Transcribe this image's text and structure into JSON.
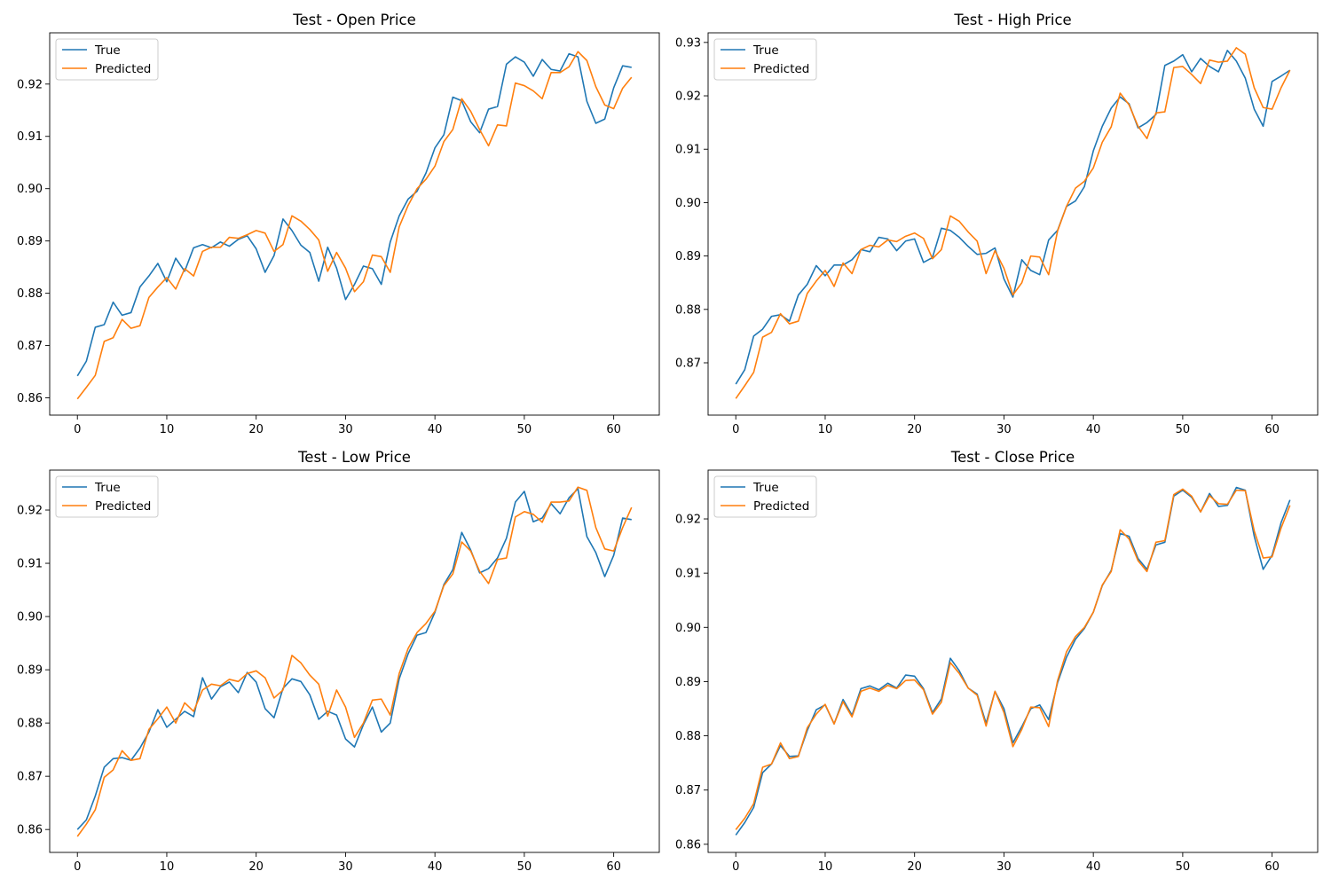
{
  "chart_data": [
    {
      "type": "line",
      "title": "Test - Open Price",
      "xlabel": "",
      "ylabel": "",
      "xlim": [
        -3.1,
        65.1
      ],
      "ylim": [
        0.8567,
        0.9298
      ],
      "xticks": [
        0,
        10,
        20,
        30,
        40,
        50,
        60
      ],
      "xtick_labels": [
        "0",
        "10",
        "20",
        "30",
        "40",
        "50",
        "60"
      ],
      "yticks": [
        0.86,
        0.87,
        0.88,
        0.89,
        0.9,
        0.91,
        0.92
      ],
      "ytick_labels": [
        "0.86",
        "0.87",
        "0.88",
        "0.89",
        "0.90",
        "0.91",
        "0.92"
      ],
      "grid": false,
      "legend": "upper-left",
      "series": [
        {
          "name": "True",
          "color": "#1f77b4",
          "values": [
            0.8642,
            0.867,
            0.8735,
            0.874,
            0.8783,
            0.8758,
            0.8763,
            0.8812,
            0.8833,
            0.8857,
            0.8822,
            0.8867,
            0.8842,
            0.8887,
            0.8893,
            0.8887,
            0.8898,
            0.889,
            0.8903,
            0.891,
            0.8885,
            0.884,
            0.8872,
            0.8942,
            0.892,
            0.8892,
            0.8878,
            0.8823,
            0.8888,
            0.8848,
            0.8788,
            0.8817,
            0.8852,
            0.8847,
            0.8817,
            0.8898,
            0.8948,
            0.898,
            0.8995,
            0.903,
            0.9078,
            0.9103,
            0.9175,
            0.9168,
            0.9128,
            0.9107,
            0.9152,
            0.9157,
            0.9238,
            0.9252,
            0.9242,
            0.9215,
            0.9247,
            0.9228,
            0.9225,
            0.9258,
            0.9252,
            0.9167,
            0.9125,
            0.9133,
            0.9193,
            0.9235,
            0.9232
          ]
        },
        {
          "name": "Predicted",
          "color": "#ff7f0e",
          "values": [
            0.8598,
            0.862,
            0.8643,
            0.8708,
            0.8715,
            0.875,
            0.8733,
            0.8738,
            0.8792,
            0.8812,
            0.883,
            0.8808,
            0.8847,
            0.8833,
            0.888,
            0.8888,
            0.8888,
            0.8907,
            0.8905,
            0.8912,
            0.892,
            0.8915,
            0.888,
            0.8893,
            0.8948,
            0.8938,
            0.8922,
            0.8902,
            0.8842,
            0.8878,
            0.8848,
            0.8803,
            0.8822,
            0.8873,
            0.887,
            0.884,
            0.8927,
            0.8968,
            0.9,
            0.9018,
            0.9043,
            0.909,
            0.9113,
            0.9172,
            0.9148,
            0.9113,
            0.9082,
            0.9122,
            0.912,
            0.9202,
            0.9197,
            0.9187,
            0.9172,
            0.9222,
            0.9222,
            0.9233,
            0.9262,
            0.9245,
            0.9195,
            0.916,
            0.9153,
            0.9192,
            0.9213
          ]
        }
      ]
    },
    {
      "type": "line",
      "title": "Test - High Price",
      "xlabel": "",
      "ylabel": "",
      "xlim": [
        -3.1,
        65.1
      ],
      "ylim": [
        0.8602,
        0.9318
      ],
      "xticks": [
        0,
        10,
        20,
        30,
        40,
        50,
        60
      ],
      "xtick_labels": [
        "0",
        "10",
        "20",
        "30",
        "40",
        "50",
        "60"
      ],
      "yticks": [
        0.87,
        0.88,
        0.89,
        0.9,
        0.91,
        0.92,
        0.93
      ],
      "ytick_labels": [
        "0.87",
        "0.88",
        "0.89",
        "0.90",
        "0.91",
        "0.92",
        "0.93"
      ],
      "grid": false,
      "legend": "upper-left",
      "series": [
        {
          "name": "True",
          "color": "#1f77b4",
          "values": [
            0.866,
            0.8687,
            0.875,
            0.8763,
            0.8787,
            0.879,
            0.8778,
            0.8827,
            0.8847,
            0.8882,
            0.8863,
            0.8883,
            0.8883,
            0.8893,
            0.8912,
            0.8908,
            0.8935,
            0.8932,
            0.891,
            0.8928,
            0.8932,
            0.8888,
            0.8897,
            0.8952,
            0.8948,
            0.8935,
            0.8918,
            0.8903,
            0.8905,
            0.8915,
            0.8857,
            0.8823,
            0.8893,
            0.8873,
            0.8865,
            0.893,
            0.8948,
            0.8993,
            0.9003,
            0.903,
            0.9097,
            0.9143,
            0.9177,
            0.9198,
            0.9185,
            0.914,
            0.915,
            0.9165,
            0.9257,
            0.9265,
            0.9277,
            0.9245,
            0.927,
            0.9255,
            0.9245,
            0.9285,
            0.9265,
            0.9233,
            0.9175,
            0.9143,
            0.9227,
            0.9237,
            0.9248
          ]
        },
        {
          "name": "Predicted",
          "color": "#ff7f0e",
          "values": [
            0.8633,
            0.8657,
            0.8682,
            0.8748,
            0.8757,
            0.8792,
            0.8773,
            0.8778,
            0.883,
            0.8853,
            0.8873,
            0.8843,
            0.8887,
            0.8867,
            0.8912,
            0.892,
            0.8917,
            0.893,
            0.8927,
            0.8937,
            0.8943,
            0.8933,
            0.8895,
            0.8912,
            0.8975,
            0.8965,
            0.8945,
            0.8928,
            0.8867,
            0.891,
            0.8877,
            0.8827,
            0.885,
            0.89,
            0.8898,
            0.8865,
            0.8947,
            0.8993,
            0.9027,
            0.904,
            0.9065,
            0.9113,
            0.9142,
            0.9205,
            0.9183,
            0.9143,
            0.912,
            0.9168,
            0.917,
            0.9253,
            0.9255,
            0.924,
            0.9223,
            0.9267,
            0.9263,
            0.9265,
            0.929,
            0.9278,
            0.9215,
            0.9178,
            0.9175,
            0.9215,
            0.9248
          ]
        }
      ]
    },
    {
      "type": "line",
      "title": "Test - Low Price",
      "xlabel": "",
      "ylabel": "",
      "xlim": [
        -3.1,
        65.1
      ],
      "ylim": [
        0.8557,
        0.9275
      ],
      "xticks": [
        0,
        10,
        20,
        30,
        40,
        50,
        60
      ],
      "xtick_labels": [
        "0",
        "10",
        "20",
        "30",
        "40",
        "50",
        "60"
      ],
      "yticks": [
        0.86,
        0.87,
        0.88,
        0.89,
        0.9,
        0.91,
        0.92
      ],
      "ytick_labels": [
        "0.86",
        "0.87",
        "0.88",
        "0.89",
        "0.90",
        "0.91",
        "0.92"
      ],
      "grid": false,
      "legend": "upper-left",
      "series": [
        {
          "name": "True",
          "color": "#1f77b4",
          "values": [
            0.86,
            0.8618,
            0.8663,
            0.8717,
            0.8733,
            0.8735,
            0.873,
            0.8753,
            0.8783,
            0.8825,
            0.8792,
            0.8807,
            0.8822,
            0.8812,
            0.8885,
            0.8845,
            0.8868,
            0.8877,
            0.8857,
            0.8895,
            0.8877,
            0.8827,
            0.881,
            0.8865,
            0.8883,
            0.8878,
            0.8853,
            0.8807,
            0.8822,
            0.8815,
            0.877,
            0.8755,
            0.8797,
            0.883,
            0.8783,
            0.88,
            0.8883,
            0.893,
            0.8965,
            0.897,
            0.9008,
            0.906,
            0.9088,
            0.9158,
            0.9125,
            0.9082,
            0.909,
            0.911,
            0.9147,
            0.9215,
            0.9235,
            0.9178,
            0.9185,
            0.9212,
            0.9193,
            0.9223,
            0.924,
            0.915,
            0.912,
            0.9075,
            0.9115,
            0.9185,
            0.9182
          ]
        },
        {
          "name": "Predicted",
          "color": "#ff7f0e",
          "values": [
            0.8587,
            0.861,
            0.8637,
            0.8698,
            0.8712,
            0.8748,
            0.873,
            0.8733,
            0.8788,
            0.8808,
            0.883,
            0.88,
            0.8838,
            0.8822,
            0.8862,
            0.8873,
            0.887,
            0.8882,
            0.8878,
            0.8893,
            0.8898,
            0.8885,
            0.8847,
            0.8862,
            0.8927,
            0.8913,
            0.889,
            0.8873,
            0.8813,
            0.8862,
            0.883,
            0.8773,
            0.88,
            0.8843,
            0.8845,
            0.8815,
            0.8893,
            0.894,
            0.897,
            0.8987,
            0.901,
            0.9058,
            0.908,
            0.914,
            0.9123,
            0.9085,
            0.9062,
            0.9107,
            0.911,
            0.9187,
            0.9197,
            0.9192,
            0.9177,
            0.9215,
            0.9215,
            0.9217,
            0.9243,
            0.9237,
            0.9167,
            0.9127,
            0.9123,
            0.9167,
            0.9205
          ]
        }
      ]
    },
    {
      "type": "line",
      "title": "Test - Close Price",
      "xlabel": "",
      "ylabel": "",
      "xlim": [
        -3.1,
        65.1
      ],
      "ylim": [
        0.8585,
        0.929
      ],
      "xticks": [
        0,
        10,
        20,
        30,
        40,
        50,
        60
      ],
      "xtick_labels": [
        "0",
        "10",
        "20",
        "30",
        "40",
        "50",
        "60"
      ],
      "yticks": [
        0.86,
        0.87,
        0.88,
        0.89,
        0.9,
        0.91,
        0.92
      ],
      "ytick_labels": [
        "0.86",
        "0.87",
        "0.88",
        "0.89",
        "0.90",
        "0.91",
        "0.92"
      ],
      "grid": false,
      "legend": "upper-left",
      "series": [
        {
          "name": "True",
          "color": "#1f77b4",
          "values": [
            0.8617,
            0.864,
            0.8668,
            0.8732,
            0.8748,
            0.8782,
            0.8762,
            0.8763,
            0.881,
            0.8848,
            0.8857,
            0.8822,
            0.8867,
            0.8838,
            0.8887,
            0.8892,
            0.8885,
            0.8897,
            0.8888,
            0.8912,
            0.891,
            0.8887,
            0.8843,
            0.8868,
            0.8943,
            0.892,
            0.8888,
            0.8877,
            0.8823,
            0.8882,
            0.885,
            0.8787,
            0.8817,
            0.885,
            0.8857,
            0.883,
            0.8898,
            0.8945,
            0.8978,
            0.8998,
            0.9028,
            0.9077,
            0.9105,
            0.9173,
            0.9168,
            0.9127,
            0.9107,
            0.9152,
            0.9157,
            0.9242,
            0.9253,
            0.924,
            0.9213,
            0.9247,
            0.9223,
            0.9225,
            0.9258,
            0.9253,
            0.9168,
            0.9107,
            0.9133,
            0.9193,
            0.9235
          ]
        },
        {
          "name": "Predicted",
          "color": "#ff7f0e",
          "values": [
            0.8627,
            0.8648,
            0.8675,
            0.8742,
            0.8748,
            0.8787,
            0.8758,
            0.8762,
            0.8815,
            0.884,
            0.8858,
            0.8822,
            0.8863,
            0.8835,
            0.8882,
            0.8888,
            0.8882,
            0.8893,
            0.8887,
            0.8902,
            0.8903,
            0.8885,
            0.884,
            0.8862,
            0.8935,
            0.8915,
            0.8888,
            0.8875,
            0.8818,
            0.8882,
            0.8843,
            0.878,
            0.8812,
            0.8853,
            0.8852,
            0.8817,
            0.8902,
            0.8955,
            0.8983,
            0.9,
            0.9028,
            0.9078,
            0.9103,
            0.918,
            0.9163,
            0.9123,
            0.9103,
            0.9157,
            0.916,
            0.9245,
            0.9255,
            0.9242,
            0.9213,
            0.9243,
            0.9228,
            0.9227,
            0.9253,
            0.9252,
            0.9178,
            0.9128,
            0.913,
            0.9183,
            0.9225
          ]
        }
      ]
    }
  ]
}
